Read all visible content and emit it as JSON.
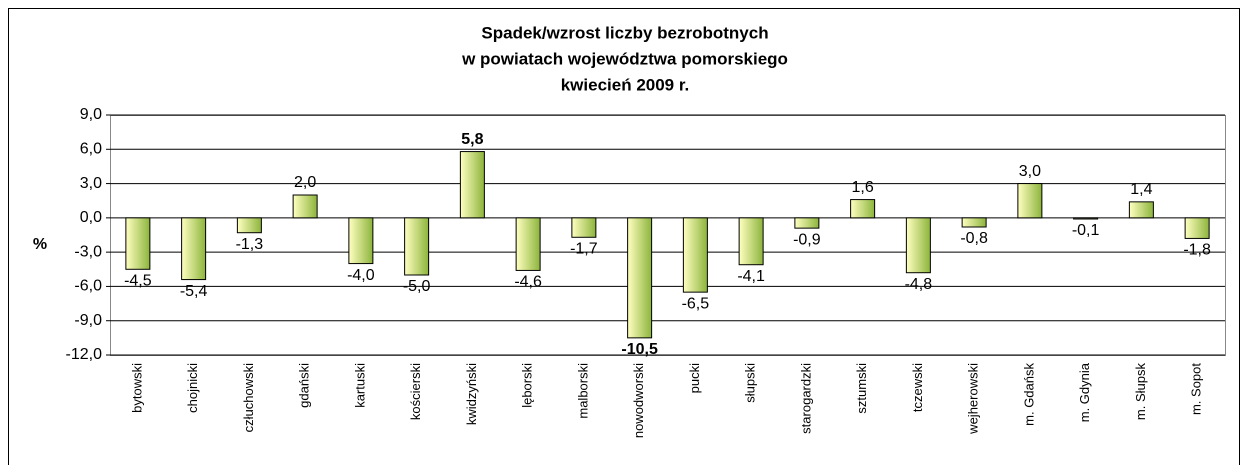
{
  "chart_data": {
    "type": "bar",
    "title": [
      "Spadek/wzrost liczby bezrobotnych",
      "w powiatach województwa pomorskiego",
      "kwiecień 2009 r."
    ],
    "ylabel": "%",
    "categories": [
      "bytowski",
      "chojnicki",
      "człuchowski",
      "gdański",
      "kartuski",
      "kościerski",
      "kwidzyński",
      "lęborski",
      "malborski",
      "nowodworski",
      "pucki",
      "słupski",
      "starogardzki",
      "sztumski",
      "tczewski",
      "wejherowski",
      "m. Gdańsk",
      "m. Gdynia",
      "m. Słupsk",
      "m. Sopot"
    ],
    "values": [
      -4.5,
      -5.4,
      -1.3,
      2.0,
      -4.0,
      -5.0,
      5.8,
      -4.6,
      -1.7,
      -10.5,
      -6.5,
      -4.1,
      -0.9,
      1.6,
      -4.8,
      -0.8,
      3.0,
      -0.1,
      1.4,
      -1.8
    ],
    "value_labels": [
      "-4,5",
      "-5,4",
      "-1,3",
      "2,0",
      "-4,0",
      "-5,0",
      "5,8",
      "-4,6",
      "-1,7",
      "-10,5",
      "-6,5",
      "-4,1",
      "-0,9",
      "1,6",
      "-4,8",
      "-0,8",
      "3,0",
      "-0,1",
      "1,4",
      "-1,8"
    ],
    "bold_value_labels": [
      6,
      9
    ],
    "color": [
      "#ffffc0",
      "#8cb43c"
    ],
    "ylim": [
      -12,
      9
    ],
    "yticks": [
      {
        "value": -12,
        "label": "-12,0"
      },
      {
        "value": -9,
        "label": "-9,0"
      },
      {
        "value": -6,
        "label": "-6,0"
      },
      {
        "value": -3,
        "label": "-3,0"
      },
      {
        "value": 0,
        "label": "0,0"
      },
      {
        "value": 3,
        "label": "3,0"
      },
      {
        "value": 6,
        "label": "6,0"
      },
      {
        "value": 9,
        "label": "9,0"
      }
    ],
    "grid": true
  }
}
